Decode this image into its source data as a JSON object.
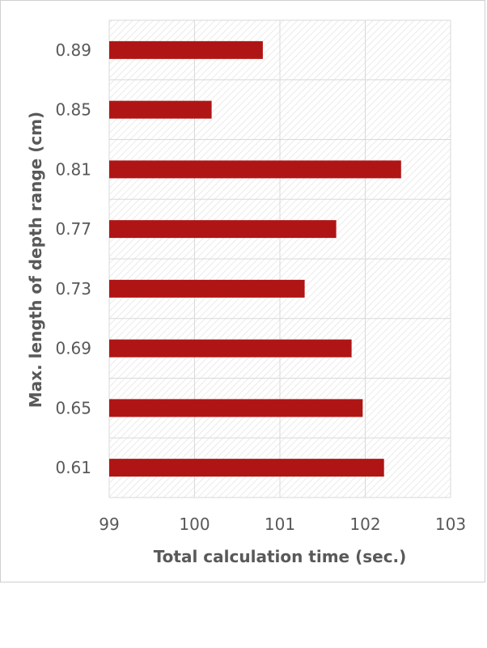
{
  "chart_data": {
    "type": "bar",
    "orientation": "horizontal",
    "categories": [
      "0.61",
      "0.65",
      "0.69",
      "0.73",
      "0.77",
      "0.81",
      "0.85",
      "0.89"
    ],
    "values": [
      102.22,
      101.97,
      101.84,
      101.29,
      101.66,
      102.42,
      100.2,
      100.8
    ],
    "xlabel": "Total calculation time (sec.)",
    "ylabel": "Max. length of depth range (cm)",
    "xlim": [
      99,
      103
    ],
    "xticks": [
      "99",
      "100",
      "101",
      "102",
      "103"
    ],
    "grid": true,
    "bar_color": "#B01515",
    "gridline_color": "#d9d9d9",
    "text_color": "#595959"
  }
}
